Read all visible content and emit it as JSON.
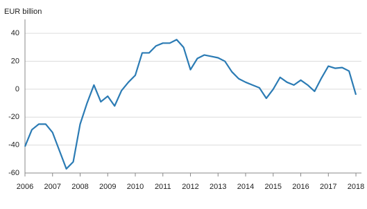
{
  "chart_data": {
    "type": "line",
    "title": "EUR billion",
    "x": [
      2006,
      2006.25,
      2006.5,
      2006.75,
      2007,
      2007.25,
      2007.5,
      2007.75,
      2008,
      2008.25,
      2008.5,
      2008.75,
      2009,
      2009.25,
      2009.5,
      2009.75,
      2010,
      2010.25,
      2010.5,
      2010.75,
      2011,
      2011.25,
      2011.5,
      2011.75,
      2012,
      2012.25,
      2012.5,
      2012.75,
      2013,
      2013.25,
      2013.5,
      2013.75,
      2014,
      2014.25,
      2014.5,
      2014.75,
      2015,
      2015.25,
      2015.5,
      2015.75,
      2016,
      2016.25,
      2016.5,
      2016.75,
      2017,
      2017.25,
      2017.5,
      2017.75,
      2018
    ],
    "series": [
      {
        "color": "#2b7bb4",
        "values": [
          -41,
          -29,
          -25,
          -25,
          -31,
          -44,
          -57,
          -52,
          -25,
          -10,
          3,
          -9,
          -5,
          -12,
          -1,
          5,
          10,
          26,
          26,
          31,
          33,
          33,
          35.5,
          30,
          14,
          22,
          24.5,
          23.5,
          22.5,
          20,
          12.5,
          7.5,
          5,
          3,
          1,
          -6.5,
          0,
          8.5,
          5,
          3,
          6.5,
          3,
          -1.5,
          8,
          16.5,
          15,
          15.5,
          13,
          -4
        ]
      }
    ],
    "xlim": [
      2006,
      2018.2
    ],
    "xticks": [
      2006,
      2007,
      2008,
      2009,
      2010,
      2011,
      2012,
      2013,
      2014,
      2015,
      2016,
      2017,
      2018
    ],
    "ylim": [
      -60,
      50
    ],
    "yticks": [
      -60,
      -40,
      -20,
      0,
      20,
      40
    ],
    "grid": true
  }
}
